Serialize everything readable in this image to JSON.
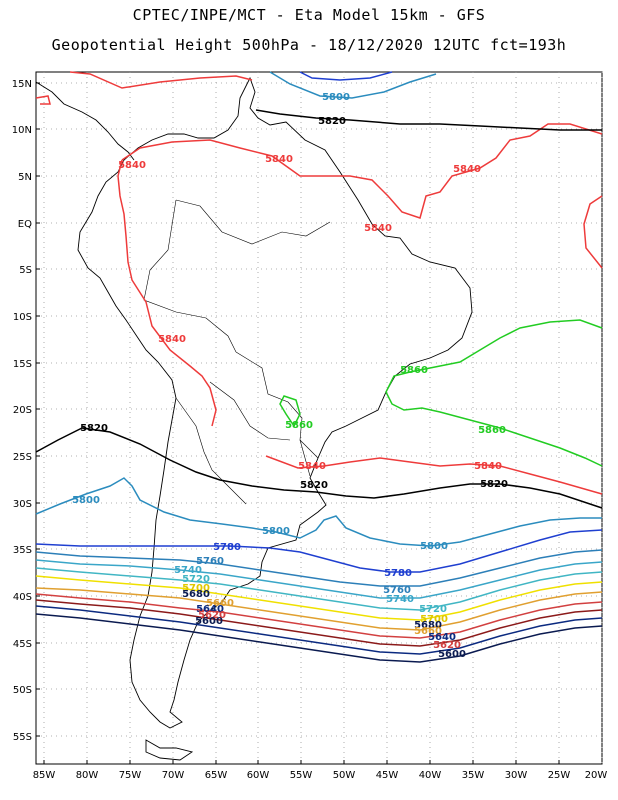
{
  "title_line1": "CPTEC/INPE/MCT -  Eta Model 15km - GFS",
  "title_line2": "Geopotential Height 500hPa - 18/12/2020 12UTC fct=193h",
  "lat_labels": [
    "15N",
    "10N",
    "5N",
    "EQ",
    "5S",
    "10S",
    "15S",
    "20S",
    "25S",
    "30S",
    "35S",
    "40S",
    "45S",
    "50S",
    "55S"
  ],
  "lon_labels": [
    "85W",
    "80W",
    "75W",
    "70W",
    "65W",
    "60W",
    "55W",
    "50W",
    "45W",
    "40W",
    "35W",
    "30W",
    "25W",
    "20W"
  ],
  "contours": [
    {
      "level": "5840",
      "color": "#ee3b3b",
      "labels": [
        "5840",
        "5840",
        "5840",
        "5840",
        "5840",
        "5840",
        "5840"
      ]
    },
    {
      "level": "5860",
      "color": "#22cc22",
      "labels": [
        "5860",
        "5860",
        "5860"
      ]
    },
    {
      "level": "5820",
      "color": "#000000",
      "labels": [
        "5820",
        "5820",
        "5820",
        "5820"
      ]
    },
    {
      "level": "5800",
      "color": "#2b8cbe",
      "labels": [
        "5800",
        "5800",
        "5800",
        "5800"
      ]
    },
    {
      "level": "5780",
      "color": "#1f3fd0",
      "labels": [
        "5780",
        "5780"
      ]
    },
    {
      "level": "5760",
      "color": "#2c7fb8",
      "labels": [
        "5760",
        "5760"
      ]
    },
    {
      "level": "5740",
      "color": "#3aa6c8",
      "labels": [
        "5740",
        "5740"
      ]
    },
    {
      "level": "5720",
      "color": "#41b6c4",
      "labels": [
        "5720",
        "5720"
      ]
    },
    {
      "level": "5700",
      "color": "#f0e000",
      "labels": [
        "5700",
        "5700"
      ]
    },
    {
      "level": "5680",
      "color": "#e0a030",
      "labels": [
        "5680",
        "5680"
      ]
    },
    {
      "level": "5660",
      "color": "#d24040",
      "labels": [
        "5660",
        "5660"
      ]
    },
    {
      "level": "5640",
      "color": "#8b1a1a",
      "labels": [
        "5640",
        "5640"
      ]
    },
    {
      "level": "5620",
      "color": "#0b2a80",
      "labels": [
        "5620",
        "5620"
      ]
    },
    {
      "level": "5600",
      "color": "#0a1a50",
      "labels": [
        "5600",
        "5600"
      ]
    }
  ]
}
